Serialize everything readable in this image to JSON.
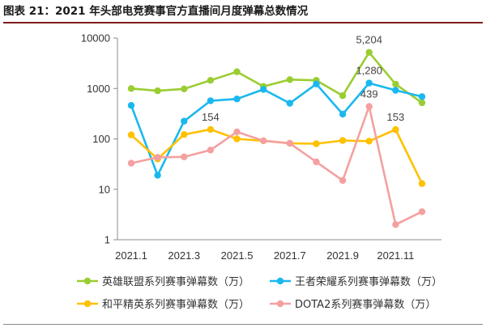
{
  "page": {
    "title": "图表 21：2021 年头部电竞赛事官方直播间月度弹幕总数情况"
  },
  "chart_data": {
    "type": "line",
    "title": "",
    "xlabel": "",
    "ylabel": "",
    "y_scale": "log",
    "ylim": [
      1,
      10000
    ],
    "y_ticks": [
      "1",
      "10",
      "100",
      "1000",
      "10000"
    ],
    "y_tick_values": [
      1,
      10,
      100,
      1000,
      10000
    ],
    "categories": [
      "2021.1",
      "2021.2",
      "2021.3",
      "2021.4",
      "2021.5",
      "2021.6",
      "2021.7",
      "2021.8",
      "2021.9",
      "2021.10",
      "2021.11",
      "2021.12"
    ],
    "x_tick_labels": [
      "2021.1",
      "2021.3",
      "2021.5",
      "2021.7",
      "2021.9",
      "2021.11"
    ],
    "x_tick_indices": [
      0,
      2,
      4,
      6,
      8,
      10
    ],
    "grid": false,
    "legend_position": "bottom",
    "series": [
      {
        "name": "英雄联盟系列赛事弹幕数（万）",
        "color": "#9acd32",
        "values": [
          1000,
          900,
          980,
          1450,
          2150,
          1100,
          1500,
          1450,
          720,
          5204,
          1220,
          520
        ]
      },
      {
        "name": "王者荣耀系列赛事弹幕数（万）",
        "color": "#1ab8ef",
        "values": [
          460,
          19,
          225,
          570,
          620,
          960,
          510,
          1230,
          310,
          1280,
          920,
          690
        ]
      },
      {
        "name": "和平精英系列赛事弹幕数（万）",
        "color": "#ffc000",
        "values": [
          120,
          40,
          122,
          154,
          100,
          92,
          82,
          80,
          93,
          90,
          153,
          13
        ]
      },
      {
        "name": "DOTA2系列赛事弹幕数（万）",
        "color": "#f4a0a0",
        "values": [
          33,
          43,
          44,
          60,
          138,
          92,
          82,
          35,
          15,
          439,
          2,
          3.6
        ]
      }
    ],
    "annotations": [
      {
        "text": "5,204",
        "series": 0,
        "index": 9
      },
      {
        "text": "1,280",
        "series": 1,
        "index": 9
      },
      {
        "text": "439",
        "series": 3,
        "index": 9
      },
      {
        "text": "154",
        "series": 2,
        "index": 3
      },
      {
        "text": "153",
        "series": 2,
        "index": 10
      }
    ]
  }
}
